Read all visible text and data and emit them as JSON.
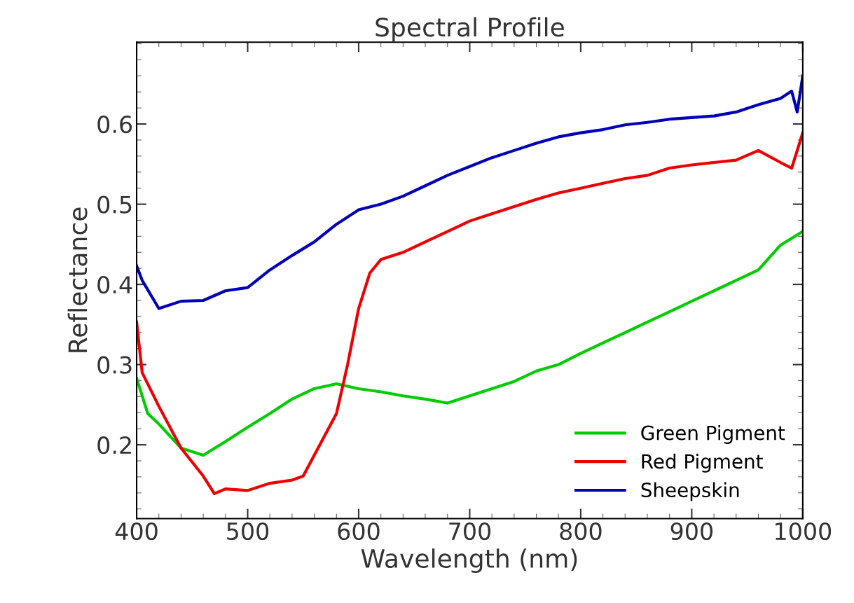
{
  "chart_data": {
    "type": "line",
    "title": "Spectral Profile",
    "xlabel": "Wavelength (nm)",
    "ylabel": "Reflectance",
    "xlim": [
      400,
      1000
    ],
    "ylim": [
      0.108,
      0.702
    ],
    "xticks": [
      400,
      500,
      600,
      700,
      800,
      900,
      1000
    ],
    "yticks": [
      0.2,
      0.3,
      0.4,
      0.5,
      0.6
    ],
    "grid": false,
    "legend": "bottom right",
    "marker": "none",
    "line_style": "solid",
    "series": [
      {
        "name": "Green Pigment",
        "color": "#00cc00",
        "x": [
          400,
          410,
          420,
          440,
          460,
          480,
          500,
          520,
          540,
          560,
          580,
          600,
          620,
          640,
          660,
          680,
          700,
          720,
          740,
          760,
          780,
          800,
          820,
          840,
          860,
          880,
          900,
          920,
          940,
          960,
          980,
          1000
        ],
        "values": [
          0.283,
          0.239,
          0.226,
          0.196,
          0.187,
          0.204,
          0.222,
          0.239,
          0.257,
          0.27,
          0.276,
          0.27,
          0.266,
          0.261,
          0.257,
          0.252,
          0.261,
          0.27,
          0.279,
          0.292,
          0.3,
          0.314,
          0.327,
          0.34,
          0.353,
          0.366,
          0.379,
          0.392,
          0.405,
          0.418,
          0.449,
          0.466
        ]
      },
      {
        "name": "Red Pigment",
        "color": "#ee0000",
        "x": [
          400,
          405,
          420,
          440,
          460,
          470,
          480,
          500,
          520,
          540,
          550,
          560,
          580,
          590,
          600,
          610,
          620,
          640,
          660,
          680,
          700,
          720,
          740,
          760,
          780,
          800,
          820,
          840,
          860,
          880,
          900,
          920,
          940,
          960,
          980,
          990,
          1000
        ],
        "values": [
          0.353,
          0.29,
          0.248,
          0.196,
          0.161,
          0.139,
          0.145,
          0.143,
          0.152,
          0.156,
          0.161,
          0.187,
          0.239,
          0.3,
          0.37,
          0.414,
          0.431,
          0.44,
          0.453,
          0.466,
          0.479,
          0.488,
          0.497,
          0.506,
          0.514,
          0.52,
          0.526,
          0.532,
          0.536,
          0.545,
          0.549,
          0.552,
          0.555,
          0.567,
          0.552,
          0.545,
          0.589
        ]
      },
      {
        "name": "Sheepskin",
        "color": "#0000bb",
        "x": [
          400,
          405,
          420,
          440,
          460,
          480,
          500,
          520,
          540,
          560,
          580,
          600,
          620,
          640,
          660,
          680,
          700,
          720,
          740,
          760,
          780,
          800,
          820,
          840,
          860,
          880,
          900,
          920,
          940,
          960,
          980,
          990,
          995,
          1000
        ],
        "values": [
          0.423,
          0.405,
          0.37,
          0.379,
          0.38,
          0.392,
          0.396,
          0.418,
          0.436,
          0.453,
          0.475,
          0.493,
          0.5,
          0.51,
          0.523,
          0.536,
          0.547,
          0.558,
          0.567,
          0.576,
          0.584,
          0.589,
          0.593,
          0.599,
          0.602,
          0.606,
          0.608,
          0.61,
          0.615,
          0.624,
          0.632,
          0.641,
          0.615,
          0.66
        ]
      }
    ]
  }
}
